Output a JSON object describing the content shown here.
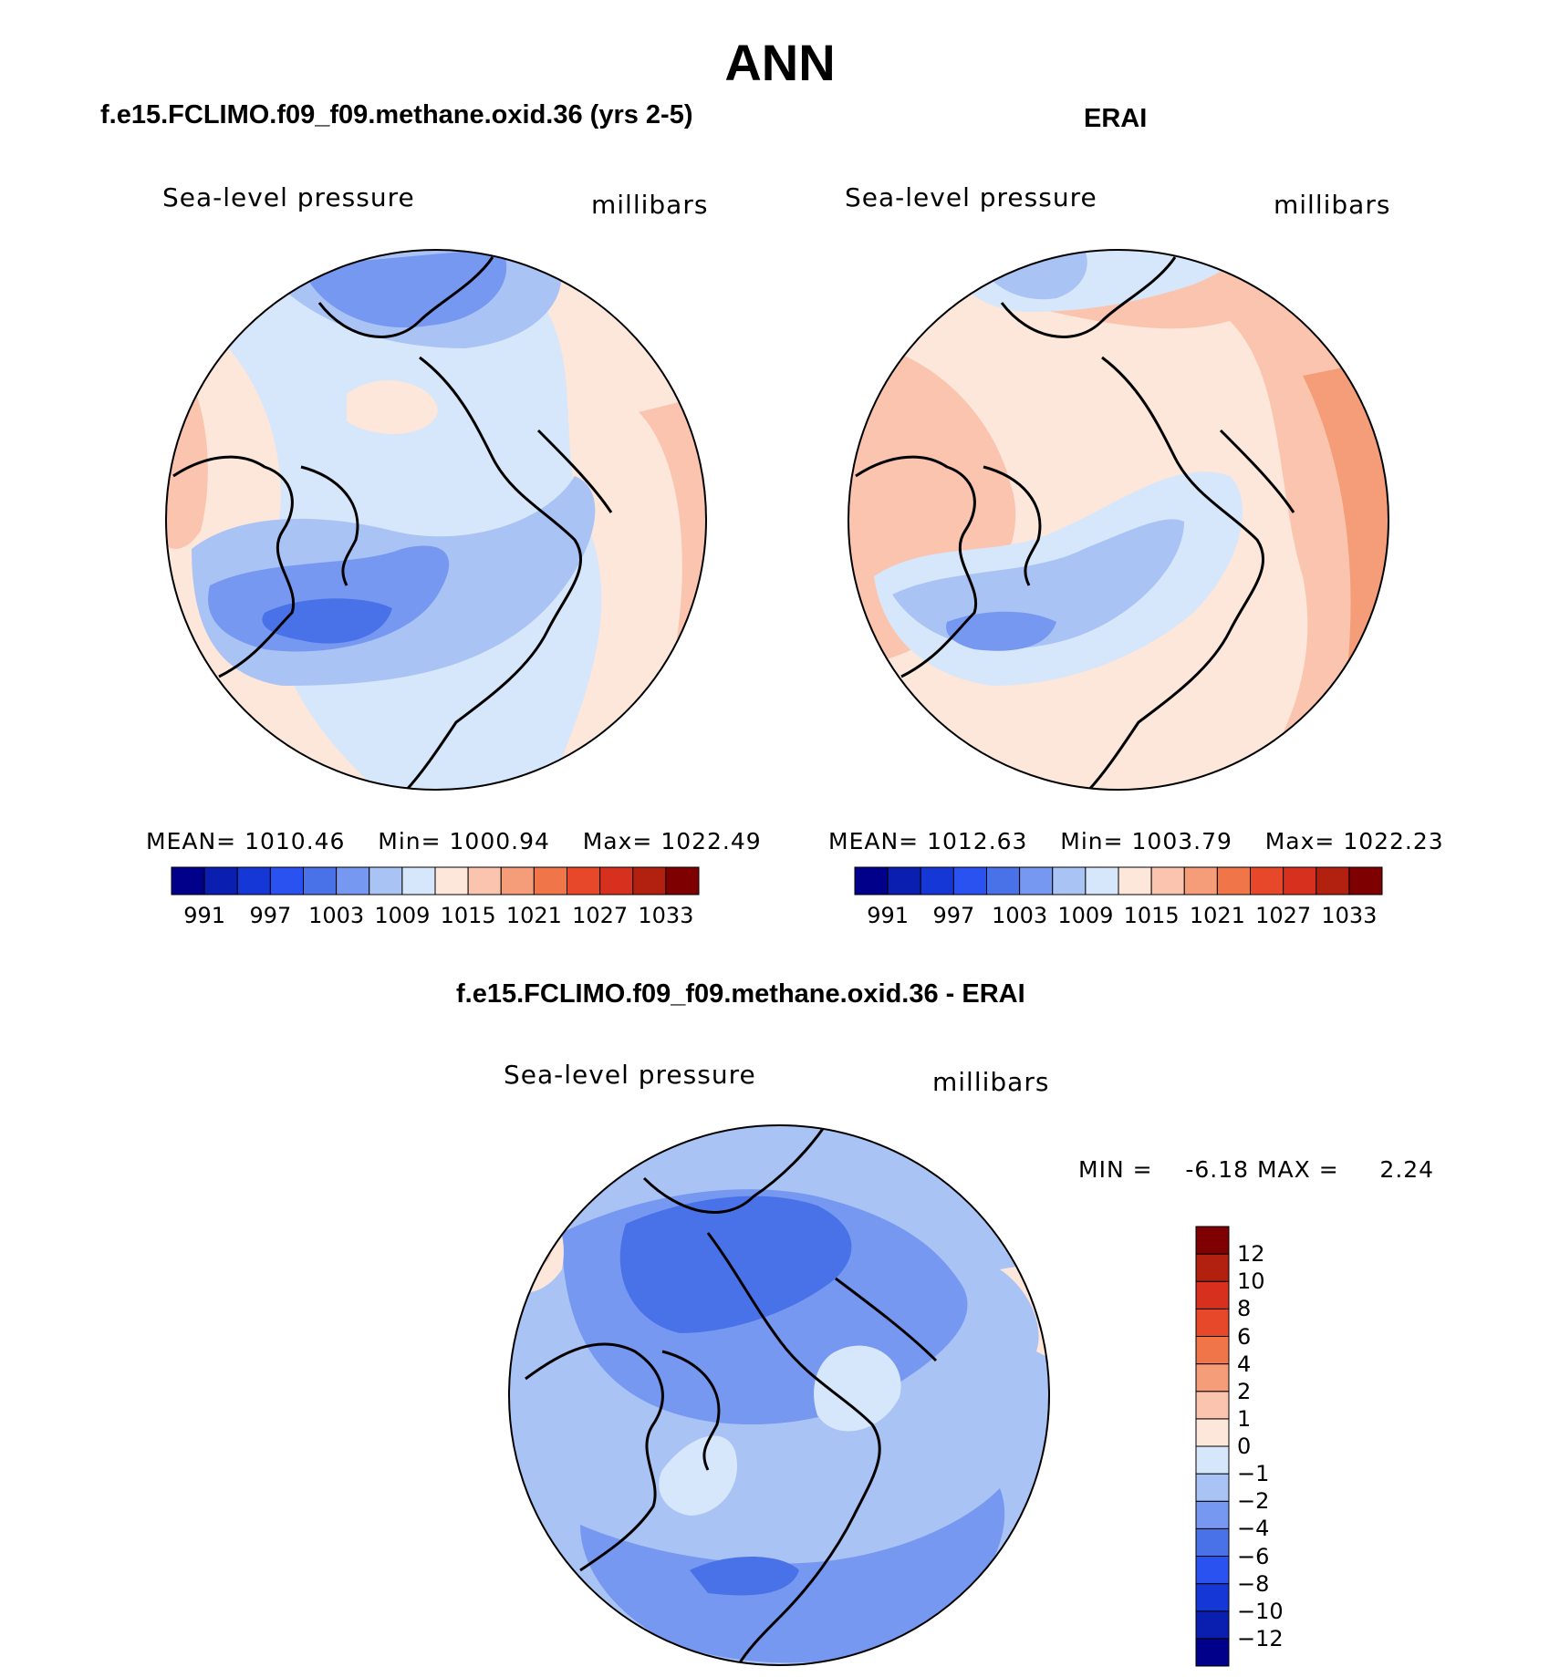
{
  "figure": {
    "title": "ANN",
    "panels": {
      "model": {
        "heading": "f.e15.FCLIMO.f09_f09.methane.oxid.36 (yrs 2-5)",
        "variable": "Sea-level pressure",
        "units": "millibars",
        "stats": {
          "mean_label": "MEAN=",
          "mean": "1010.46",
          "min_label": "Min=",
          "min": "1000.94",
          "max_label": "Max=",
          "max": "1022.49"
        }
      },
      "obs": {
        "heading": "ERAI",
        "variable": "Sea-level pressure",
        "units": "millibars",
        "stats": {
          "mean_label": "MEAN=",
          "mean": "1012.63",
          "min_label": "Min=",
          "min": "1003.79",
          "max_label": "Max=",
          "max": "1022.23"
        }
      },
      "diff": {
        "heading": "f.e15.FCLIMO.f09_f09.methane.oxid.36 - ERAI",
        "variable": "Sea-level pressure",
        "units": "millibars",
        "stats": {
          "min_label": "MIN =",
          "min": "-6.18",
          "max_label": "MAX =",
          "max": "2.24"
        }
      }
    },
    "abs_colorbar": {
      "colors": [
        "#00008b",
        "#0a1fb0",
        "#1437d6",
        "#2a52f0",
        "#4a72e8",
        "#7798f0",
        "#a9c3f5",
        "#d6e7fb",
        "#fde6da",
        "#fbc4ae",
        "#f59c78",
        "#f07548",
        "#e8482a",
        "#d7301f",
        "#b22010",
        "#7f0000"
      ],
      "tick_labels": [
        "991",
        "997",
        "1003",
        "1009",
        "1015",
        "1021",
        "1027",
        "1033"
      ]
    },
    "diff_colorbar": {
      "colors": [
        "#00008b",
        "#0a1fb0",
        "#1437d6",
        "#2a52f0",
        "#4a72e8",
        "#7798f0",
        "#a9c3f5",
        "#d6e7fb",
        "#fde6da",
        "#fbc4ae",
        "#f59c78",
        "#f07548",
        "#e8482a",
        "#d7301f",
        "#b22010",
        "#7f0000"
      ],
      "tick_labels": [
        "12",
        "10",
        "8",
        "6",
        "4",
        "2",
        "1",
        "0",
        "−1",
        "−2",
        "−4",
        "−6",
        "−8",
        "−10",
        "−12"
      ]
    },
    "map_fields": {
      "model": [
        {
          "fill": "#d6e7fb"
        },
        {
          "fill": "#fde6da"
        },
        {
          "fill": "#fbc4ae"
        },
        {
          "fill": "#a9c3f5"
        },
        {
          "fill": "#7798f0"
        },
        {
          "fill": "#4a72e8"
        }
      ],
      "obs": [
        {
          "fill": "#fde6da"
        },
        {
          "fill": "#fbc4ae"
        },
        {
          "fill": "#f59c78"
        },
        {
          "fill": "#d6e7fb"
        },
        {
          "fill": "#a9c3f5"
        },
        {
          "fill": "#7798f0"
        }
      ],
      "diff": [
        {
          "fill": "#a9c3f5"
        },
        {
          "fill": "#7798f0"
        },
        {
          "fill": "#4a72e8"
        },
        {
          "fill": "#d6e7fb"
        },
        {
          "fill": "#fde6da"
        },
        {
          "fill": "#fbc4ae"
        }
      ]
    }
  }
}
